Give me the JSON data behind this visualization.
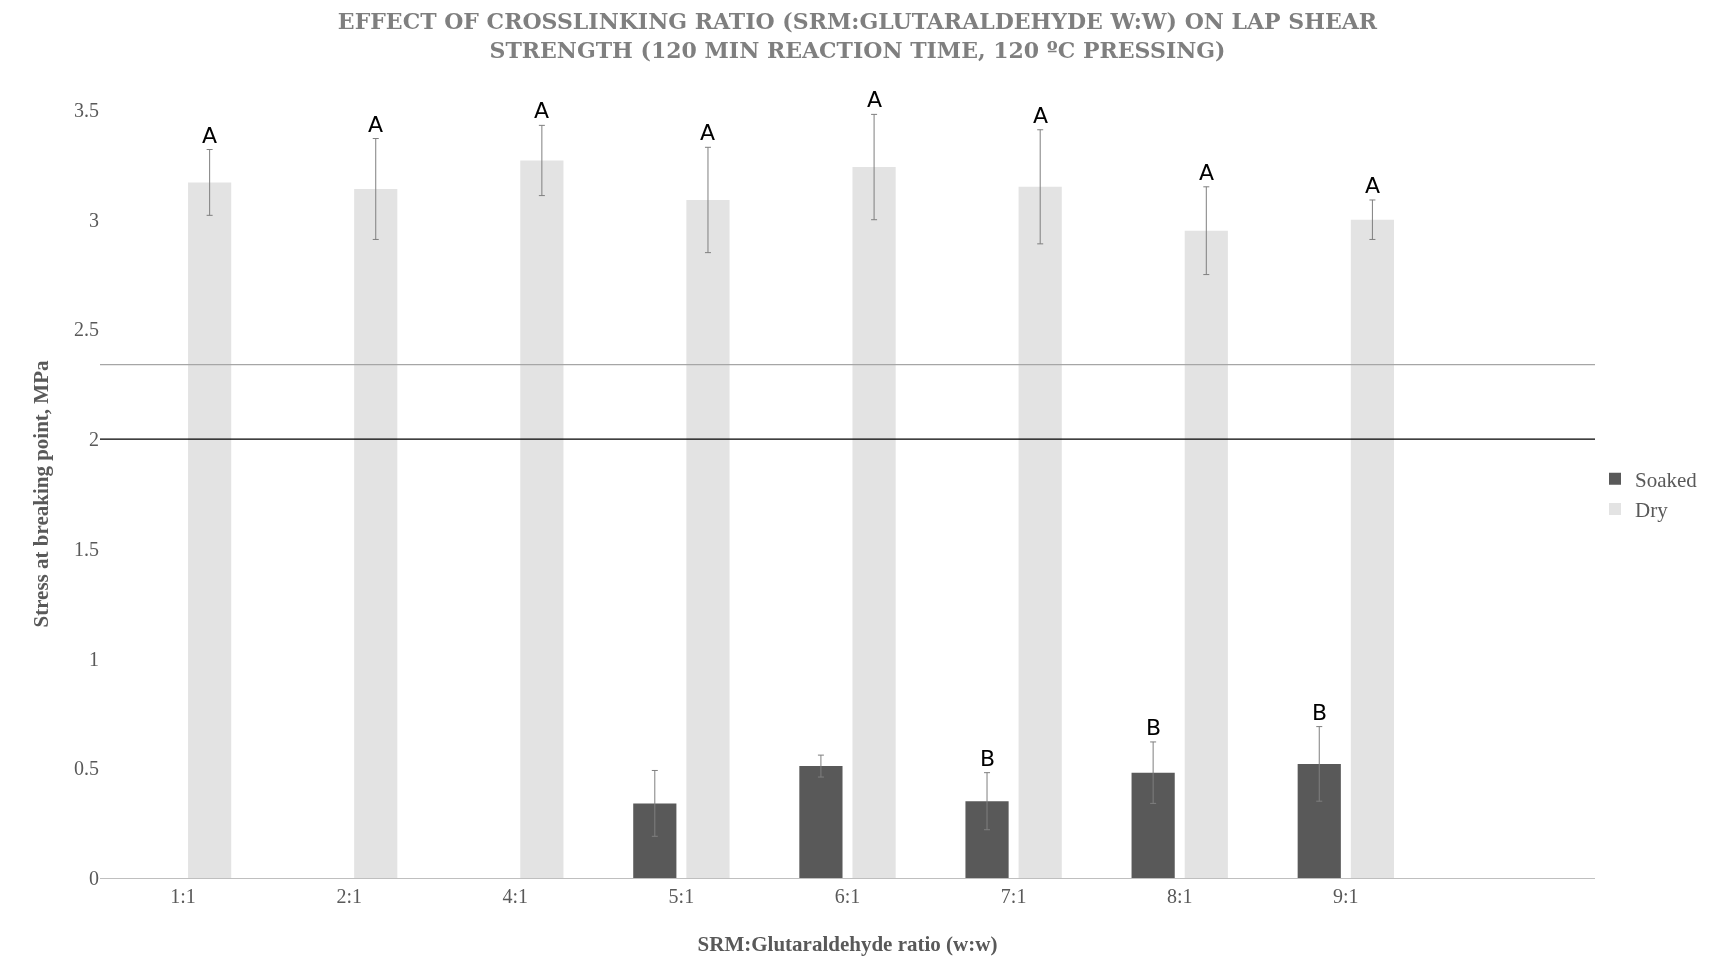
{
  "chart_data": {
    "type": "bar",
    "title": "EFFECT OF CROSSLINKING RATIO (SRM:GLUTARALDEHYDE W:W) ON LAP SHEAR STRENGTH (120 MIN REACTION TIME, 120 ºC PRESSING)",
    "xlabel": "SRM:Glutaraldehyde ratio (w:w)",
    "ylabel": "Stress at breaking point, MPa",
    "categories": [
      "1:1",
      "2:1",
      "4:1",
      "5:1",
      "6:1",
      "7:1",
      "8:1",
      "9:1",
      null
    ],
    "series": [
      {
        "name": "Soaked",
        "color": "#595959",
        "values": [
          null,
          null,
          null,
          0.34,
          0.51,
          0.35,
          0.48,
          0.52,
          null
        ],
        "errors": [
          null,
          null,
          null,
          0.15,
          0.05,
          0.13,
          0.14,
          0.17,
          null
        ]
      },
      {
        "name": "Dry",
        "color": "#e3e3e3",
        "values": [
          3.17,
          3.14,
          3.27,
          3.09,
          3.24,
          3.15,
          2.95,
          3.0,
          null
        ],
        "errors": [
          0.15,
          0.23,
          0.16,
          0.24,
          0.24,
          0.26,
          0.2,
          0.09,
          null
        ]
      }
    ],
    "ylim": [
      0,
      3.5
    ],
    "yticks": [
      0,
      0.5,
      1,
      1.5,
      2,
      2.5,
      3,
      3.5
    ],
    "grid": false,
    "legend": "right",
    "ref_lines": [
      {
        "axis": "y",
        "value": 2.34,
        "color": "#a6a6a6"
      },
      {
        "axis": "y",
        "value": 2,
        "color": "#000000"
      }
    ],
    "annotations": [
      {
        "text": "A",
        "x": "1:1",
        "y": 3.17
      },
      {
        "text": "A",
        "x": "2:1",
        "y": 3.14
      },
      {
        "text": "A",
        "x": "4:1",
        "y": 3.27
      },
      {
        "text": "A",
        "x": "5:1",
        "y": 3.09
      },
      {
        "text": "A",
        "x": "6:1",
        "y": 3.24
      },
      {
        "text": "A",
        "x": "7:1",
        "y": 3.15
      },
      {
        "text": "A",
        "x": "8:1",
        "y": 2.95
      },
      {
        "text": "A",
        "x": "9:1",
        "y": 3.0
      },
      {
        "text": "B",
        "x": "7:1",
        "y": 0.35
      },
      {
        "text": "B",
        "x": "8:1",
        "y": 0.48
      },
      {
        "text": "B",
        "x": "9:1",
        "y": 0.52
      }
    ]
  }
}
